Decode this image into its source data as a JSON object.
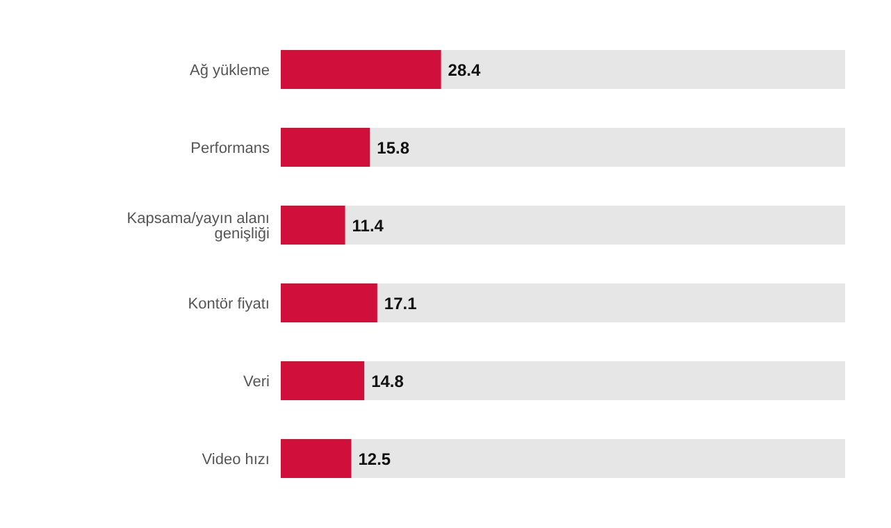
{
  "chart_data": {
    "type": "bar",
    "orientation": "horizontal",
    "categories": [
      "Ağ yükleme",
      "Performans",
      "Kapsama/yayın alanı genişliği",
      "Kontör fiyatı",
      "Veri",
      "Video hızı"
    ],
    "values": [
      28.4,
      15.8,
      11.4,
      17.1,
      14.8,
      12.5
    ],
    "color": "#d0103a",
    "xlim": [
      0,
      100
    ],
    "data_labels": true
  }
}
